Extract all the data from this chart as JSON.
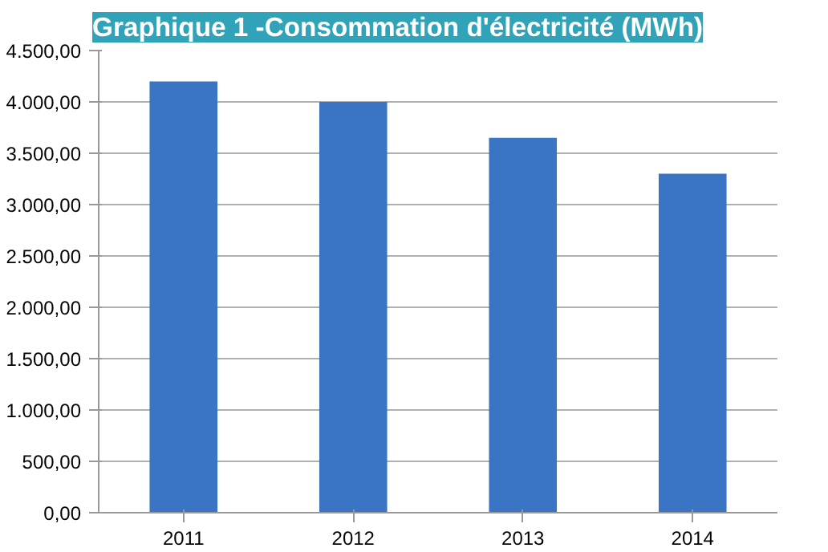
{
  "chart_data": {
    "type": "bar",
    "title": "Graphique 1 -Consommation d'électricité (MWh)",
    "categories": [
      "2011",
      "2012",
      "2013",
      "2014"
    ],
    "values": [
      4200,
      4000,
      3650,
      3300
    ],
    "color": "#3a75c4",
    "ylim": [
      0,
      4500
    ],
    "yticks": [
      {
        "value": 0,
        "label": "0,00"
      },
      {
        "value": 500,
        "label": "500,00"
      },
      {
        "value": 1000,
        "label": "1.000,00"
      },
      {
        "value": 1500,
        "label": "1.500,00"
      },
      {
        "value": 2000,
        "label": "2.000,00"
      },
      {
        "value": 2500,
        "label": "2.500,00"
      },
      {
        "value": 3000,
        "label": "3.000,00"
      },
      {
        "value": 3500,
        "label": "3.500,00"
      },
      {
        "value": 4000,
        "label": "4.000,00"
      },
      {
        "value": 4500,
        "label": "4.500,00"
      }
    ],
    "grid": "y"
  }
}
